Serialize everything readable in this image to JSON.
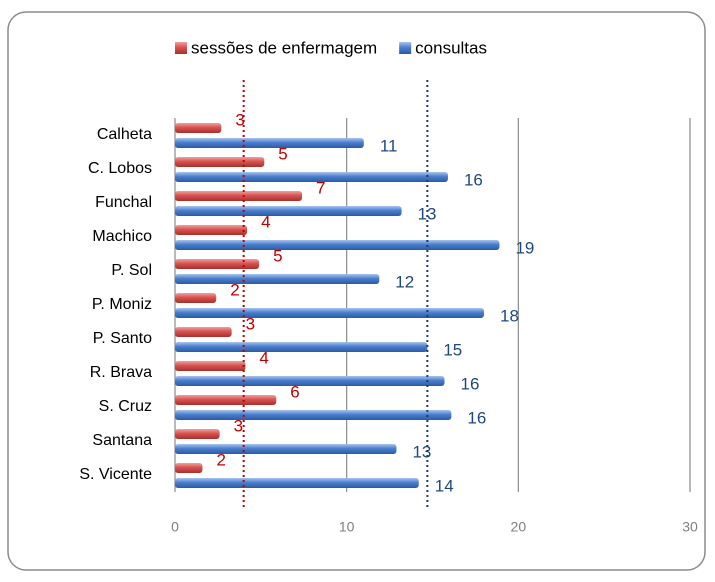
{
  "chart_data": {
    "type": "hbar",
    "categories": [
      "Calheta",
      "C. Lobos",
      "Funchal",
      "Machico",
      "P. Sol",
      "P. Moniz",
      "P. Santo",
      "R. Brava",
      "S. Cruz ",
      "Santana",
      "S. Vicente"
    ],
    "series": [
      {
        "name": "sessões de enfermagem",
        "color": "#c0504d",
        "values": [
          2.7,
          5.2,
          7.4,
          4.2,
          4.9,
          2.4,
          3.3,
          4.1,
          5.9,
          2.6,
          1.6
        ],
        "value_labels": [
          "3",
          "5",
          "7",
          "4",
          "5",
          "2",
          "3",
          "4",
          "6",
          "3",
          "2"
        ]
      },
      {
        "name": "consultas",
        "color": "#1f497d",
        "values": [
          11.0,
          15.9,
          13.2,
          18.9,
          11.9,
          18.0,
          14.7,
          15.7,
          16.1,
          12.9,
          14.2
        ],
        "value_labels": [
          "11",
          "16",
          "13",
          "19",
          "12",
          "18",
          "15",
          "16",
          "16",
          "13",
          "14"
        ]
      }
    ],
    "reference_lines": [
      {
        "value": 4.0,
        "color": "#c00000"
      },
      {
        "value": 14.7,
        "color": "#1f3864"
      }
    ],
    "xlim": [
      0,
      30
    ],
    "xticks": [
      0,
      10,
      20,
      30
    ],
    "grid": true
  }
}
